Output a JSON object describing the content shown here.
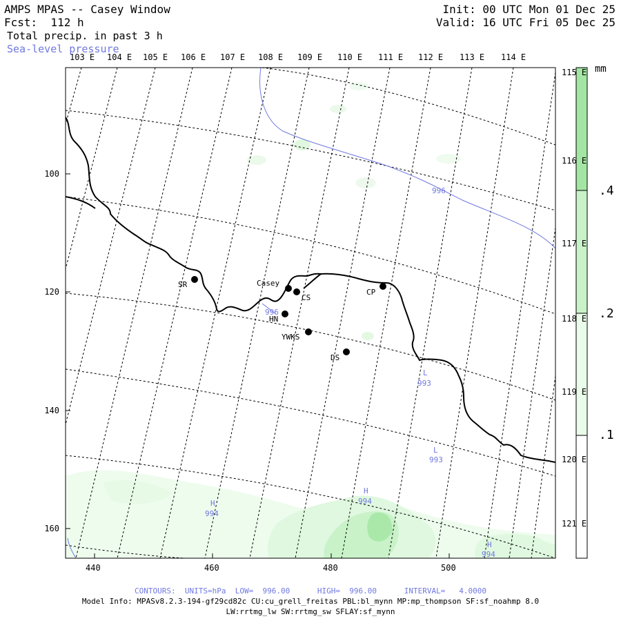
{
  "header": {
    "title": "AMPS MPAS -- Casey Window",
    "forecast": "Fcst:  112 h",
    "field": "Total precip. in past 3 h",
    "overlay": "Sea-level pressure",
    "init": "Init: 00 UTC Mon 01 Dec 25",
    "valid": "Valid: 16 UTC Fri 05 Dec 25"
  },
  "map": {
    "top_lon_labels": [
      "103 E",
      "104 E",
      "105 E",
      "106 E",
      "107 E",
      "108 E",
      "109 E",
      "110 E",
      "111 E",
      "112 E",
      "113 E",
      "114 E"
    ],
    "right_lon_labels": [
      "115 E",
      "116 E",
      "117 E",
      "118 E",
      "119 E",
      "120 E",
      "121 E"
    ],
    "x_ticks": [
      "440",
      "460",
      "480",
      "500"
    ],
    "y_ticks": [
      "100",
      "120",
      "140",
      "160"
    ],
    "stations": [
      {
        "name": "SR"
      },
      {
        "name": "Casey"
      },
      {
        "name": "CS"
      },
      {
        "name": "HN"
      },
      {
        "name": "CP"
      },
      {
        "name": "YWKS"
      },
      {
        "name": "DS"
      }
    ],
    "pressure_labels": [
      {
        "text": "996",
        "kind": "contour"
      },
      {
        "text": "996",
        "kind": "contour"
      },
      {
        "text": "L",
        "value": "993"
      },
      {
        "text": "L",
        "value": "993"
      },
      {
        "text": "H",
        "value": "994"
      },
      {
        "text": "H",
        "value": "994"
      },
      {
        "text": "H",
        "value": "994"
      }
    ],
    "colors": {
      "coast": "#000000",
      "pressure": "#6f78e0",
      "precip_light": "#e9fbe9",
      "precip_mid": "#c9f2c9",
      "precip_strong": "#9fe39f"
    }
  },
  "colorbar": {
    "unit": "mm",
    "labels": [
      ".4",
      ".2",
      ".1"
    ]
  },
  "footer": {
    "contours": "CONTOURS:  UNITS=hPa  LOW=  996.00      HIGH=  996.00      INTERVAL=   4.0000",
    "model_info": "Model Info: MPASv8.2.3-194-gf29cd82c CU:cu_grell_freitas PBL:bl_mynn MP:mp_thompson SF:sf_noahmp 8.0",
    "model_info2": "LW:rrtmg_lw SW:rrtmg_sw SFLAY:sf_mynn"
  }
}
